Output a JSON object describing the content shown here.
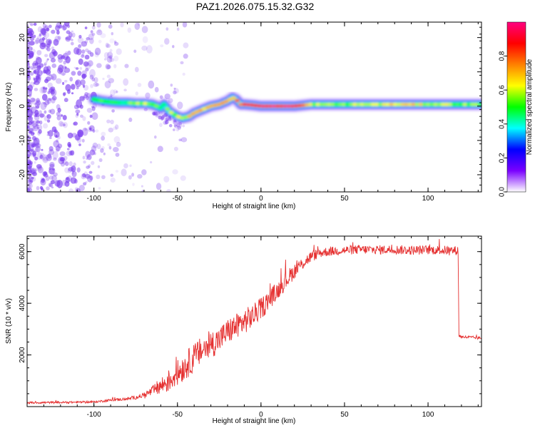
{
  "figure_title": "PAZ1.2026.075.15.32.G32",
  "colors": {
    "snr_line": "#e53030",
    "background": "#ffffff",
    "axis": "#000000",
    "noise_purple": "#7a3cf0"
  },
  "chart_data": [
    {
      "type": "heatmap",
      "title": "PAZ1.2026.075.15.32.G32",
      "xlabel": "Height of straight line (km)",
      "ylabel": "Frequency (Hz)",
      "xlim": [
        -140,
        132
      ],
      "ylim": [
        -25,
        24.5
      ],
      "x_ticks": [
        -100,
        -50,
        0,
        50,
        100
      ],
      "y_ticks": [
        -20,
        -10,
        0,
        10,
        20
      ],
      "colorbar": {
        "label": "Normalized spectral amplitude",
        "range": [
          0,
          1
        ],
        "ticks": [
          0.0,
          0.2,
          0.4,
          0.6,
          0.8
        ],
        "colormap": [
          "#ffffff",
          "#7a00ff",
          "#0000ff",
          "#00ffff",
          "#00ff00",
          "#ffff00",
          "#ff8000",
          "#ff0000",
          "#ff0080"
        ]
      },
      "ridge": {
        "x": [
          -100,
          -95,
          -90,
          -85,
          -80,
          -75,
          -70,
          -65,
          -60,
          -58,
          -55,
          -50,
          -47,
          -43,
          -40,
          -35,
          -30,
          -25,
          -20,
          -17,
          -15,
          -12,
          -10,
          -5,
          0,
          10,
          20,
          30,
          40,
          50,
          60,
          70,
          80,
          90,
          100,
          110,
          120,
          132
        ],
        "freq": [
          2,
          1.5,
          1.2,
          1,
          1,
          0.8,
          0.8,
          0.5,
          -0.5,
          0.5,
          -1.5,
          -3,
          -3.5,
          -3,
          -2,
          -1,
          0,
          0.5,
          1.5,
          2.5,
          2,
          0.5,
          0.5,
          0.3,
          0,
          0,
          0,
          0.5,
          0.5,
          0.5,
          0.5,
          0.5,
          0.5,
          0.5,
          0.5,
          0.5,
          0.5,
          0.5
        ],
        "amplitude": [
          0.45,
          0.5,
          0.5,
          0.45,
          0.5,
          0.55,
          0.6,
          0.55,
          0.5,
          0.45,
          0.55,
          0.6,
          0.6,
          0.65,
          0.65,
          0.7,
          0.7,
          0.75,
          0.75,
          0.7,
          0.75,
          0.8,
          0.85,
          0.9,
          0.95,
          0.98,
          0.95,
          0.6,
          0.55,
          0.55,
          0.6,
          0.6,
          0.65,
          0.65,
          0.6,
          0.6,
          0.55,
          0.55
        ]
      }
    },
    {
      "type": "line",
      "xlabel": "Height of straight line (km)",
      "ylabel": "SNR (10 * v/v)",
      "xlim": [
        -140,
        132
      ],
      "ylim": [
        0,
        6600
      ],
      "x_ticks": [
        -100,
        -50,
        0,
        50,
        100
      ],
      "y_ticks": [
        2000,
        4000,
        6000
      ],
      "series": [
        {
          "name": "SNR",
          "x": [
            -140,
            -120,
            -100,
            -90,
            -80,
            -75,
            -70,
            -65,
            -60,
            -55,
            -50,
            -45,
            -40,
            -35,
            -30,
            -25,
            -20,
            -15,
            -10,
            -5,
            0,
            5,
            10,
            15,
            20,
            25,
            30,
            35,
            40,
            50,
            60,
            70,
            80,
            90,
            100,
            110,
            118,
            118.5,
            120,
            132
          ],
          "values": [
            150,
            160,
            180,
            250,
            300,
            350,
            450,
            600,
            800,
            1000,
            1300,
            1600,
            1900,
            2200,
            2400,
            2600,
            2900,
            3100,
            3300,
            3500,
            3800,
            4150,
            4500,
            4900,
            5250,
            5550,
            5800,
            5950,
            6000,
            6050,
            6080,
            6070,
            6080,
            6050,
            6070,
            6050,
            6040,
            2750,
            2700,
            2650
          ],
          "noise_amplitude": [
            40,
            40,
            40,
            50,
            60,
            70,
            100,
            200,
            350,
            450,
            500,
            550,
            550,
            550,
            550,
            500,
            500,
            500,
            500,
            450,
            420,
            400,
            350,
            350,
            300,
            250,
            220,
            200,
            180,
            180,
            180,
            180,
            180,
            180,
            180,
            180,
            180,
            60,
            60,
            60
          ]
        }
      ]
    }
  ]
}
